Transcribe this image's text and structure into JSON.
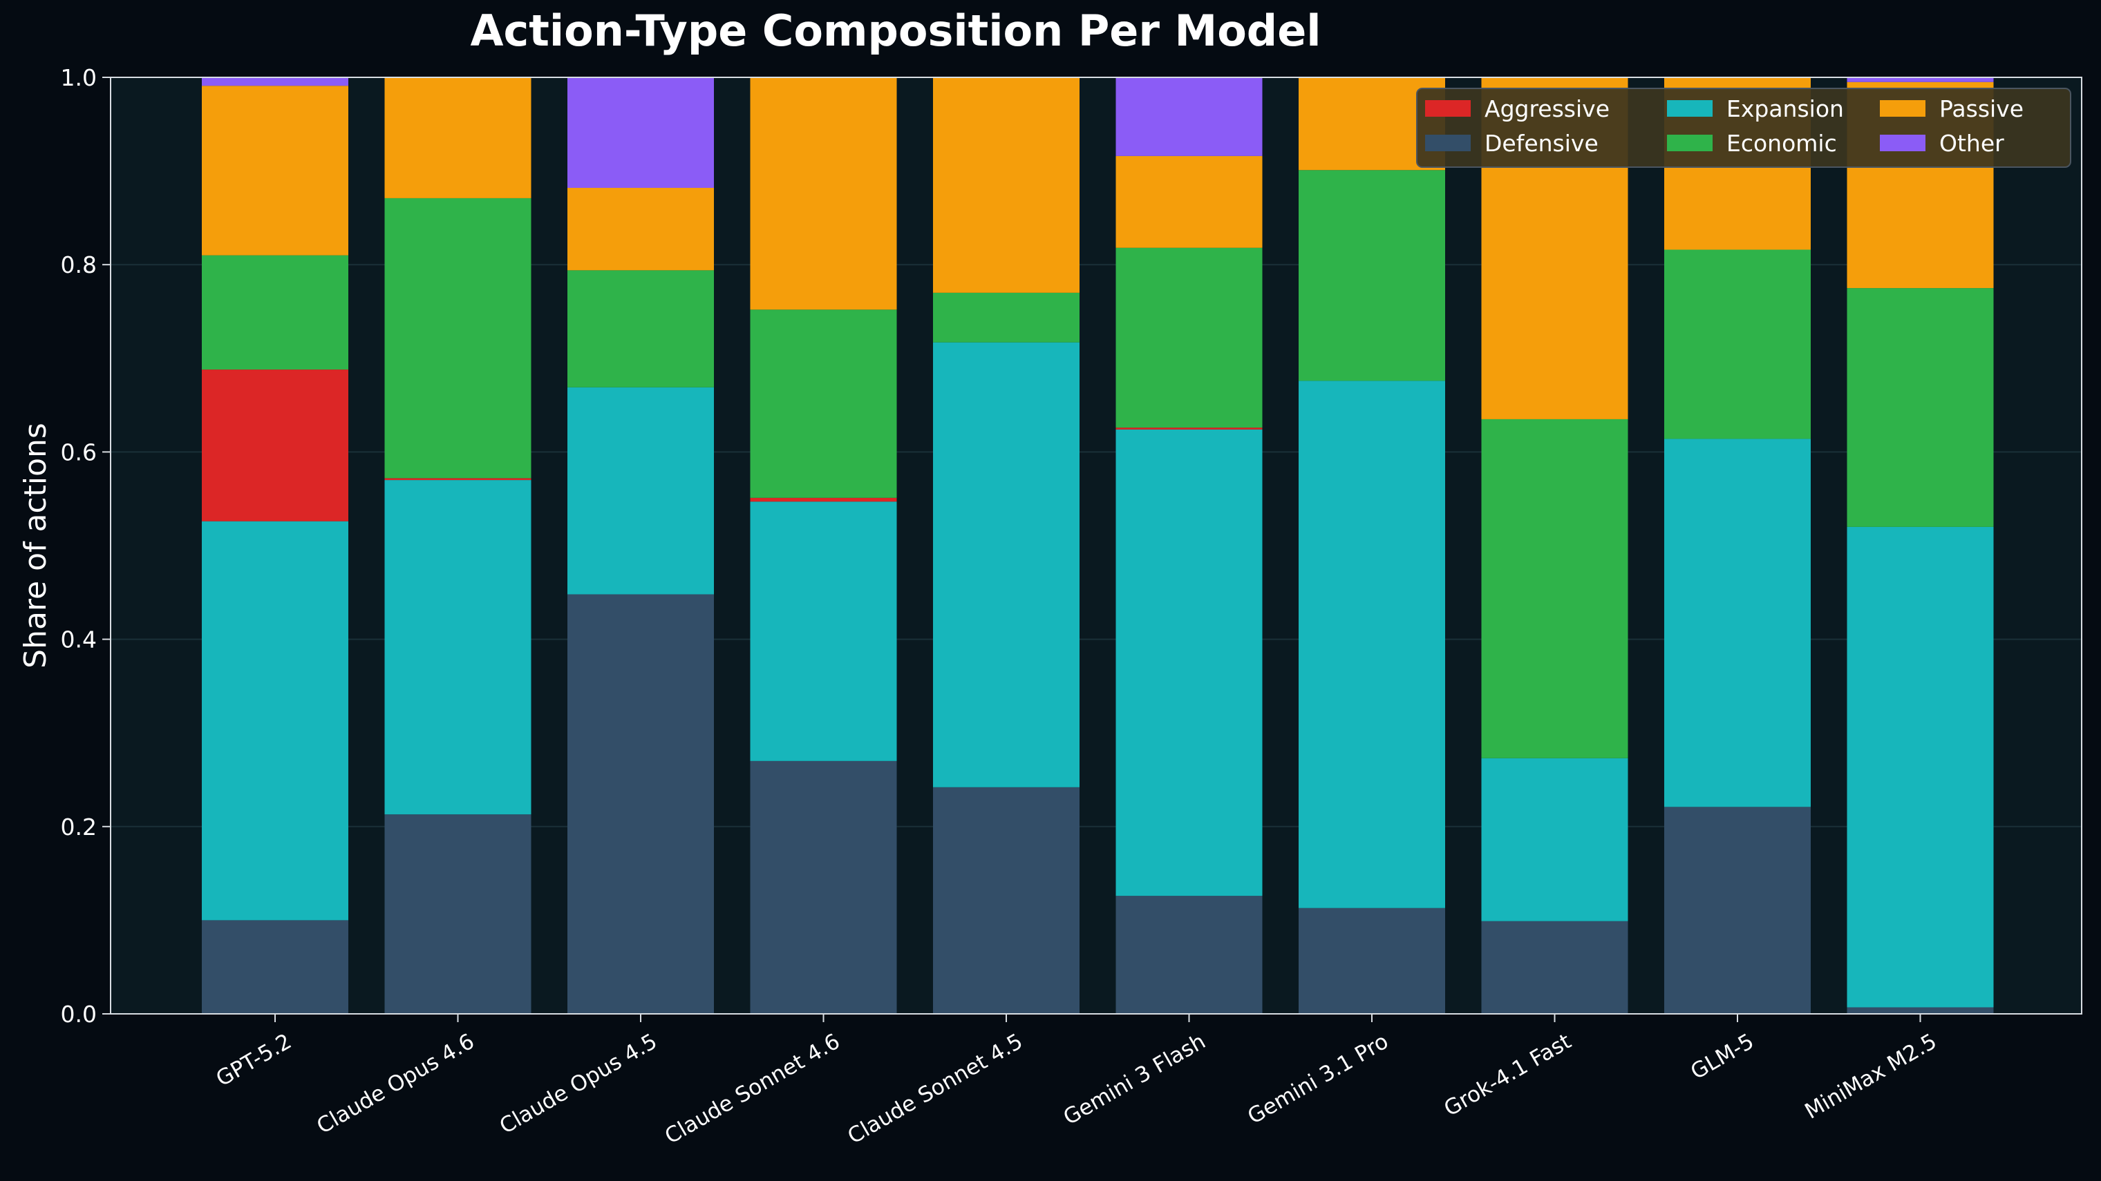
{
  "chart_data": {
    "type": "bar",
    "stacked": true,
    "title": "Action-Type Composition Per Model",
    "xlabel": "",
    "ylabel": "Share of actions",
    "ylim": [
      0,
      1.0
    ],
    "yticks": [
      "0.0",
      "0.2",
      "0.4",
      "0.6",
      "0.8",
      "1.0"
    ],
    "grid": true,
    "legend_position": "top-right",
    "categories": [
      "GPT-5.2",
      "Claude Opus 4.6",
      "Claude Opus 4.5",
      "Claude Sonnet 4.6",
      "Claude Sonnet 4.5",
      "Gemini 3 Flash",
      "Gemini 3.1 Pro",
      "Grok-4.1 Fast",
      "GLM-5",
      "MiniMax M2.5"
    ],
    "stack_order": [
      "Defensive",
      "Expansion",
      "Aggressive",
      "Economic",
      "Passive",
      "Other"
    ],
    "series": [
      {
        "name": "Aggressive",
        "color": "#dc2626",
        "values": [
          0.162,
          0.002,
          0.0,
          0.004,
          0.0,
          0.002,
          0.0,
          0.0,
          0.0,
          0.0
        ]
      },
      {
        "name": "Defensive",
        "color": "#334e68",
        "values": [
          0.1,
          0.213,
          0.448,
          0.27,
          0.242,
          0.126,
          0.113,
          0.099,
          0.221,
          0.007
        ]
      },
      {
        "name": "Expansion",
        "color": "#17b6bb",
        "values": [
          0.426,
          0.357,
          0.221,
          0.277,
          0.475,
          0.498,
          0.563,
          0.174,
          0.393,
          0.513
        ]
      },
      {
        "name": "Economic",
        "color": "#2fb34a",
        "values": [
          0.122,
          0.299,
          0.125,
          0.201,
          0.053,
          0.192,
          0.225,
          0.362,
          0.202,
          0.255
        ]
      },
      {
        "name": "Passive",
        "color": "#f59e0b",
        "values": [
          0.181,
          0.129,
          0.088,
          0.248,
          0.23,
          0.098,
          0.099,
          0.365,
          0.184,
          0.22
        ]
      },
      {
        "name": "Other",
        "color": "#8b5cf6",
        "values": [
          0.009,
          0.0,
          0.118,
          0.0,
          0.0,
          0.084,
          0.0,
          0.0,
          0.0,
          0.005
        ]
      }
    ],
    "colors": {
      "background": "#050b12",
      "plot_background": "#0a1920",
      "grid": "#1a3038",
      "text": "#ffffff"
    }
  }
}
